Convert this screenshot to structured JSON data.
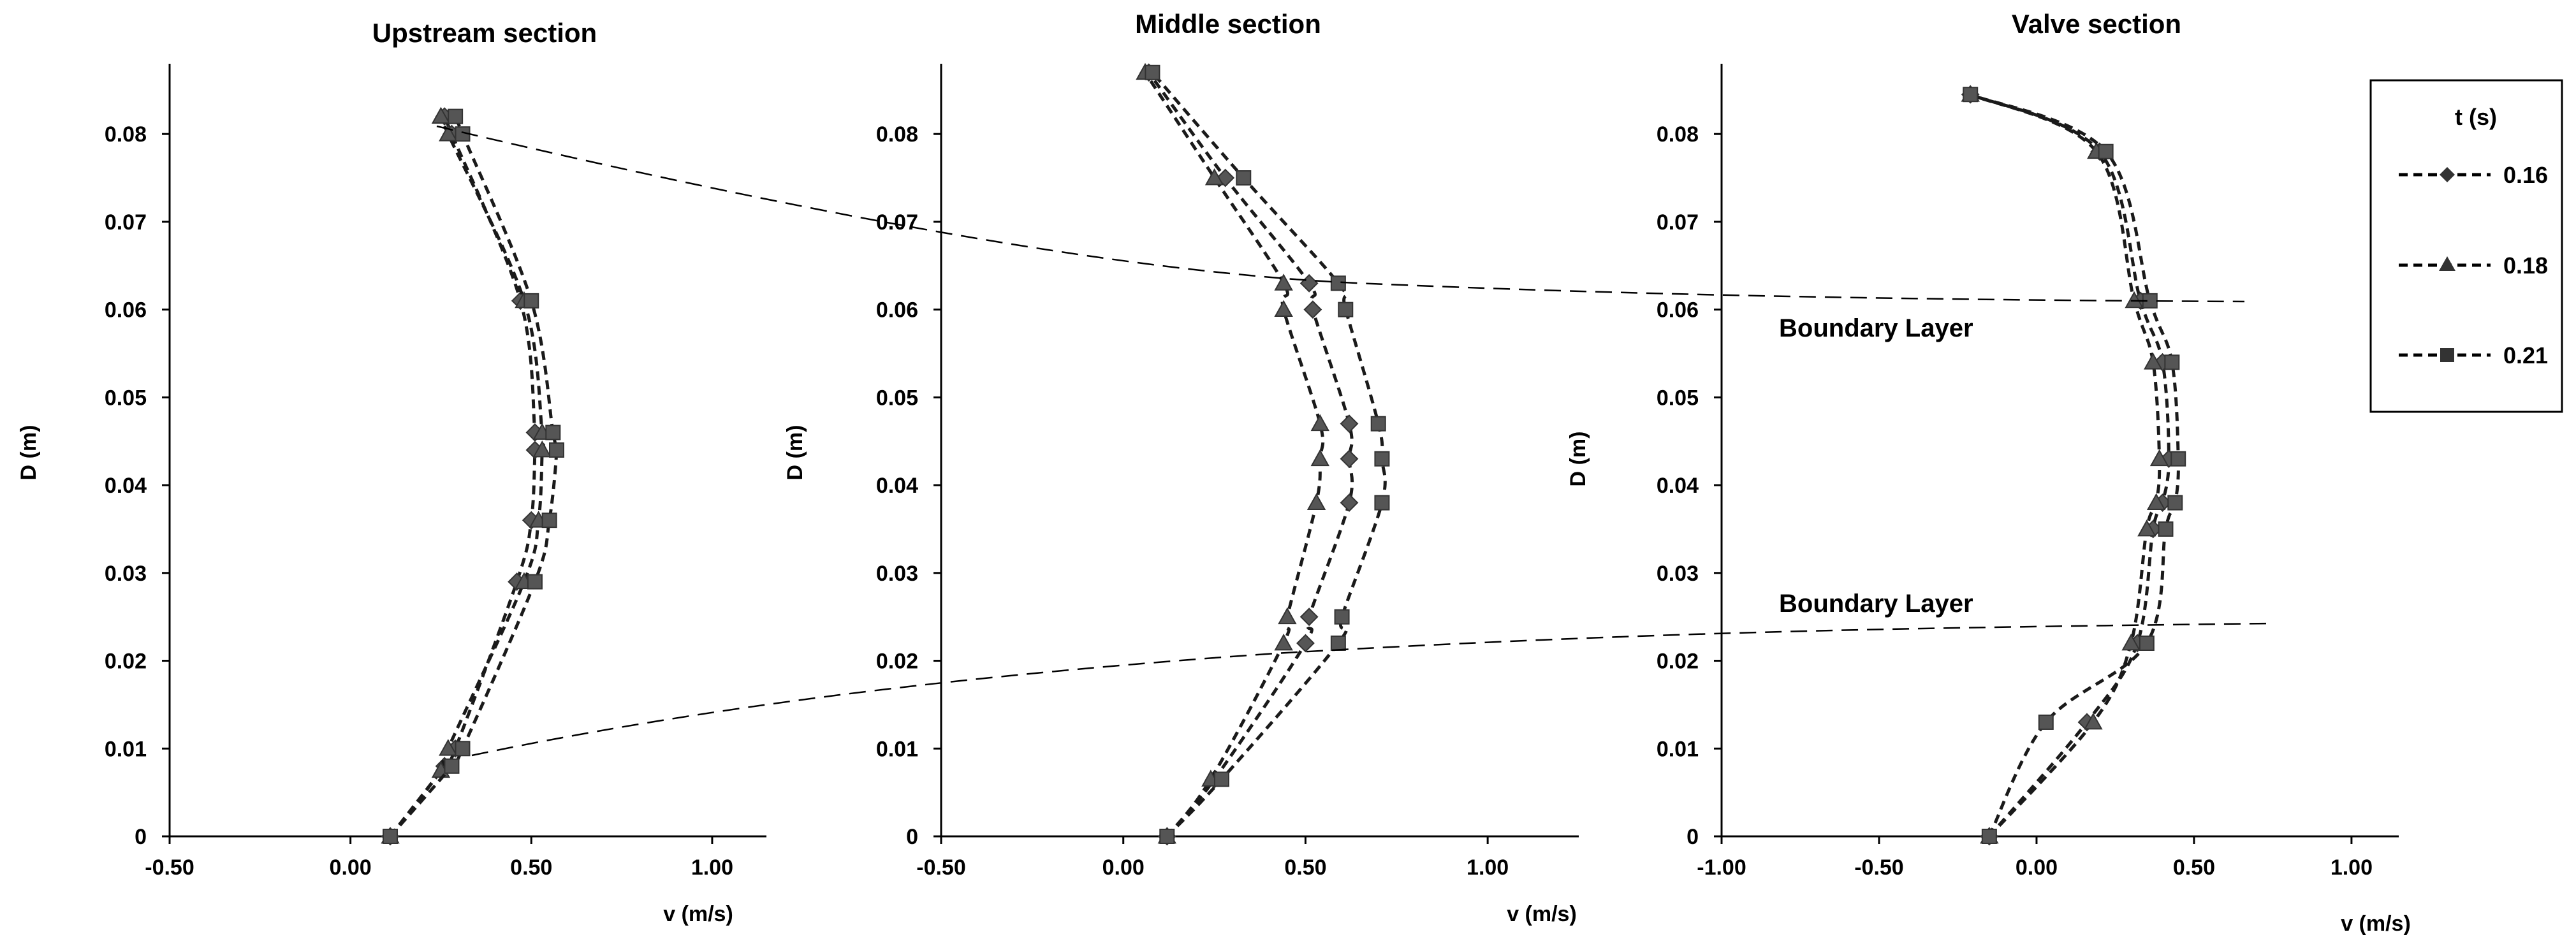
{
  "chart_data": [
    {
      "type": "line",
      "title": "Upstream section",
      "xlabel": "v (m/s)",
      "ylabel": "D (m)",
      "xlim": [
        -0.5,
        1.15
      ],
      "ylim": [
        0,
        0.088
      ],
      "xticks": [
        "-0.50",
        "0.00",
        "0.50",
        "1.00"
      ],
      "yticks": [
        "0",
        "0.01",
        "0.02",
        "0.03",
        "0.04",
        "0.05",
        "0.06",
        "0.07",
        "0.08"
      ],
      "series": [
        {
          "name": "0.16",
          "marker": "diamond",
          "points": [
            [
              0.11,
              0.0
            ],
            [
              0.26,
              0.008
            ],
            [
              0.29,
              0.01
            ],
            [
              0.46,
              0.029
            ],
            [
              0.5,
              0.036
            ],
            [
              0.51,
              0.044
            ],
            [
              0.51,
              0.046
            ],
            [
              0.47,
              0.061
            ],
            [
              0.28,
              0.08
            ],
            [
              0.26,
              0.082
            ]
          ]
        },
        {
          "name": "0.18",
          "marker": "triangle",
          "points": [
            [
              0.11,
              0.0
            ],
            [
              0.25,
              0.0075
            ],
            [
              0.27,
              0.01
            ],
            [
              0.48,
              0.029
            ],
            [
              0.52,
              0.036
            ],
            [
              0.53,
              0.044
            ],
            [
              0.53,
              0.046
            ],
            [
              0.48,
              0.061
            ],
            [
              0.27,
              0.08
            ],
            [
              0.25,
              0.082
            ]
          ]
        },
        {
          "name": "0.21",
          "marker": "square",
          "points": [
            [
              0.11,
              0.0
            ],
            [
              0.28,
              0.008
            ],
            [
              0.31,
              0.01
            ],
            [
              0.51,
              0.029
            ],
            [
              0.55,
              0.036
            ],
            [
              0.57,
              0.044
            ],
            [
              0.56,
              0.046
            ],
            [
              0.5,
              0.061
            ],
            [
              0.31,
              0.08
            ],
            [
              0.29,
              0.082
            ]
          ]
        }
      ]
    },
    {
      "type": "line",
      "title": "Middle section",
      "xlabel": "v (m/s)",
      "ylabel": "D (m)",
      "xlim": [
        -0.5,
        1.25
      ],
      "ylim": [
        0,
        0.088
      ],
      "xticks": [
        "-0.50",
        "0.00",
        "0.50",
        "1.00"
      ],
      "yticks": [
        "0",
        "0.01",
        "0.02",
        "0.03",
        "0.04",
        "0.05",
        "0.06",
        "0.07",
        "0.08"
      ],
      "series": [
        {
          "name": "0.16",
          "marker": "diamond",
          "points": [
            [
              0.12,
              0.0
            ],
            [
              0.25,
              0.0065
            ],
            [
              0.5,
              0.022
            ],
            [
              0.51,
              0.025
            ],
            [
              0.62,
              0.038
            ],
            [
              0.62,
              0.043
            ],
            [
              0.62,
              0.047
            ],
            [
              0.52,
              0.06
            ],
            [
              0.51,
              0.063
            ],
            [
              0.28,
              0.075
            ],
            [
              0.07,
              0.087
            ]
          ]
        },
        {
          "name": "0.18",
          "marker": "triangle",
          "points": [
            [
              0.12,
              0.0
            ],
            [
              0.24,
              0.0065
            ],
            [
              0.44,
              0.022
            ],
            [
              0.45,
              0.025
            ],
            [
              0.53,
              0.038
            ],
            [
              0.54,
              0.043
            ],
            [
              0.54,
              0.047
            ],
            [
              0.44,
              0.06
            ],
            [
              0.44,
              0.063
            ],
            [
              0.25,
              0.075
            ],
            [
              0.06,
              0.087
            ]
          ]
        },
        {
          "name": "0.21",
          "marker": "square",
          "points": [
            [
              0.12,
              0.0
            ],
            [
              0.27,
              0.0065
            ],
            [
              0.59,
              0.022
            ],
            [
              0.6,
              0.025
            ],
            [
              0.71,
              0.038
            ],
            [
              0.71,
              0.043
            ],
            [
              0.7,
              0.047
            ],
            [
              0.61,
              0.06
            ],
            [
              0.59,
              0.063
            ],
            [
              0.33,
              0.075
            ],
            [
              0.08,
              0.087
            ]
          ]
        }
      ]
    },
    {
      "type": "line",
      "title": "Valve section",
      "xlabel": "v (m/s)",
      "ylabel": "D (m)",
      "xlim": [
        -1.0,
        1.15
      ],
      "ylim": [
        0,
        0.088
      ],
      "xticks": [
        "-1.00",
        "-0.50",
        "0.00",
        "0.50",
        "1.00"
      ],
      "yticks": [
        "0",
        "0.01",
        "0.02",
        "0.03",
        "0.04",
        "0.05",
        "0.06",
        "0.07",
        "0.08"
      ],
      "annotations": [
        "Boundary Layer",
        "Boundary Layer"
      ],
      "series": [
        {
          "name": "0.16",
          "marker": "diamond",
          "points": [
            [
              -0.15,
              0.0
            ],
            [
              0.16,
              0.013
            ],
            [
              0.32,
              0.022
            ],
            [
              0.37,
              0.035
            ],
            [
              0.4,
              0.038
            ],
            [
              0.42,
              0.043
            ],
            [
              0.4,
              0.054
            ],
            [
              0.33,
              0.061
            ],
            [
              0.2,
              0.078
            ],
            [
              -0.21,
              0.0845
            ]
          ]
        },
        {
          "name": "0.18",
          "marker": "triangle",
          "points": [
            [
              -0.15,
              0.0
            ],
            [
              0.18,
              0.013
            ],
            [
              0.3,
              0.022
            ],
            [
              0.35,
              0.035
            ],
            [
              0.38,
              0.038
            ],
            [
              0.39,
              0.043
            ],
            [
              0.37,
              0.054
            ],
            [
              0.31,
              0.061
            ],
            [
              0.19,
              0.078
            ],
            [
              -0.21,
              0.0845
            ]
          ]
        },
        {
          "name": "0.21",
          "marker": "square",
          "points": [
            [
              -0.15,
              0.0
            ],
            [
              0.03,
              0.013
            ],
            [
              0.35,
              0.022
            ],
            [
              0.41,
              0.035
            ],
            [
              0.44,
              0.038
            ],
            [
              0.45,
              0.043
            ],
            [
              0.43,
              0.054
            ],
            [
              0.36,
              0.061
            ],
            [
              0.22,
              0.078
            ],
            [
              -0.21,
              0.0845
            ]
          ]
        }
      ]
    }
  ],
  "legend": {
    "title": "t (s)",
    "position": "right",
    "entries": [
      {
        "label": "0.16",
        "marker": "diamond"
      },
      {
        "label": "0.18",
        "marker": "triangle"
      },
      {
        "label": "0.21",
        "marker": "square"
      }
    ]
  },
  "colors": {
    "series": "#1a1a1a",
    "marker": "#555555",
    "axis": "#000000",
    "guide": "#000000"
  }
}
